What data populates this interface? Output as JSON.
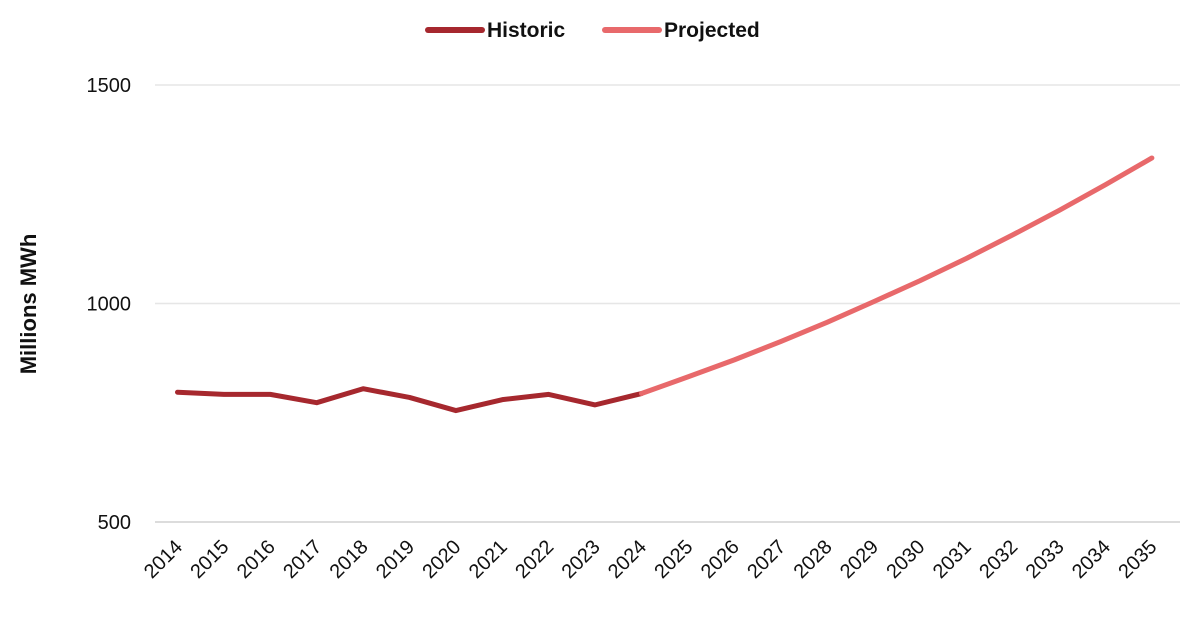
{
  "chart_data": {
    "type": "line",
    "ylabel": "Millions MWh",
    "xlabel": "",
    "ylim": [
      500,
      1500
    ],
    "yticks": [
      500,
      1000,
      1500
    ],
    "grid": true,
    "legend_position": "top-center",
    "categories": [
      "2014",
      "2015",
      "2016",
      "2017",
      "2018",
      "2019",
      "2020",
      "2021",
      "2022",
      "2023",
      "2024",
      "2025",
      "2026",
      "2027",
      "2028",
      "2029",
      "2030",
      "2031",
      "2032",
      "2033",
      "2034",
      "2035"
    ],
    "series": [
      {
        "name": "Historic",
        "color": "#a6282e",
        "x": [
          "2014",
          "2015",
          "2016",
          "2017",
          "2018",
          "2019",
          "2020",
          "2021",
          "2022",
          "2023",
          "2024"
        ],
        "values": [
          797,
          792,
          792,
          773,
          805,
          785,
          755,
          780,
          792,
          768,
          794
        ]
      },
      {
        "name": "Projected",
        "color": "#e8696b",
        "x": [
          "2024",
          "2025",
          "2026",
          "2027",
          "2028",
          "2029",
          "2030",
          "2031",
          "2032",
          "2033",
          "2034",
          "2035"
        ],
        "values": [
          794,
          832,
          871,
          913,
          957,
          1004,
          1052,
          1103,
          1157,
          1213,
          1272,
          1333
        ]
      }
    ]
  }
}
